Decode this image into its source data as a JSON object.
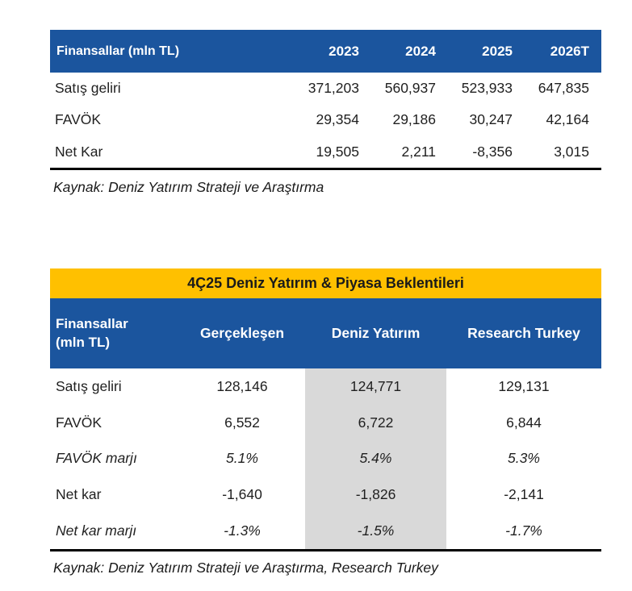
{
  "colors": {
    "header_blue": "#1B559E",
    "title_gold": "#FFC000",
    "highlight_gray": "#D9D9D9",
    "border_black": "#000000"
  },
  "table1": {
    "header": {
      "label": "Finansallar (mln TL)",
      "columns": [
        "2023",
        "2024",
        "2025",
        "2026T"
      ]
    },
    "rows": [
      {
        "label": "Satış geliri",
        "values": [
          "371,203",
          "560,937",
          "523,933",
          "647,835"
        ]
      },
      {
        "label": "FAVÖK",
        "values": [
          "29,354",
          "29,186",
          "30,247",
          "42,164"
        ]
      },
      {
        "label": "Net Kar",
        "values": [
          "19,505",
          "2,211",
          "-8,356",
          "3,015"
        ]
      }
    ],
    "source": "Kaynak: Deniz Yatırım Strateji ve Araştırma"
  },
  "table2": {
    "title": "4Ç25 Deniz Yatırım & Piyasa Beklentileri",
    "header": {
      "label_line1": "Finansallar",
      "label_line2": "(mln TL)",
      "columns": [
        "Gerçekleşen",
        "Deniz Yatırım",
        "Research Turkey"
      ]
    },
    "rows": [
      {
        "label": "Satış geliri",
        "values": [
          "128,146",
          "124,771",
          "129,131"
        ]
      },
      {
        "label": "FAVÖK",
        "values": [
          "6,552",
          "6,722",
          "6,844"
        ]
      },
      {
        "label": "FAVÖK marjı",
        "values": [
          "5.1%",
          "5.4%",
          "5.3%"
        ]
      },
      {
        "label": "Net kar",
        "values": [
          "-1,640",
          "-1,826",
          "-2,141"
        ]
      },
      {
        "label": "Net kar marjı",
        "values": [
          "-1.3%",
          "-1.5%",
          "-1.7%"
        ]
      }
    ],
    "source": "Kaynak: Deniz Yatırım Strateji ve Araştırma, Research Turkey"
  }
}
